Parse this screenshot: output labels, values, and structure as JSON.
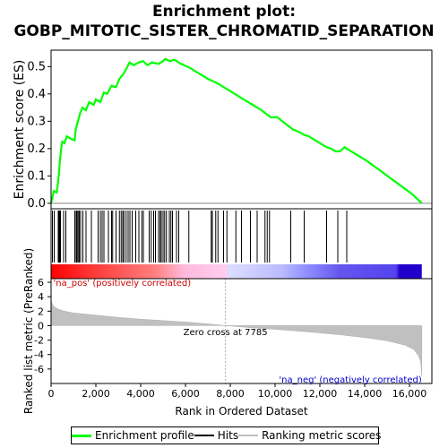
{
  "chart_data": {
    "type": "line",
    "title": "Enrichment plot:",
    "subtitle": "GOBP_MITOTIC_SISTER_CHROMATID_SEPARATION",
    "xlabel": "Rank in Ordered Dataset",
    "ylabel_top": "Enrichment score (ES)",
    "ylabel_bottom": "Ranked list metric (PreRanked)",
    "xlim": [
      0,
      17000
    ],
    "ylim_top": [
      -0.02,
      0.56
    ],
    "ylim_bottom": [
      -8,
      6.5
    ],
    "x_ticks": [
      0,
      2000,
      4000,
      6000,
      8000,
      10000,
      12000,
      14000,
      16000
    ],
    "x_tick_labels": [
      "0",
      "2,000",
      "4,000",
      "6,000",
      "8,000",
      "10,000",
      "12,000",
      "14,000",
      "16,000"
    ],
    "y_ticks_top": [
      0.0,
      0.1,
      0.2,
      0.3,
      0.4,
      0.5
    ],
    "y_tick_labels_top": [
      "0.0",
      "0.1",
      "0.2",
      "0.3",
      "0.4",
      "0.5"
    ],
    "y_ticks_bottom": [
      -6,
      -4,
      -2,
      0,
      2,
      4,
      6
    ],
    "y_tick_labels_bottom": [
      "-6",
      "-4",
      "-2",
      "0",
      "2",
      "4",
      "6"
    ],
    "series": [
      {
        "name": "Enrichment profile",
        "color": "#00ff00",
        "points": [
          [
            0,
            0.0
          ],
          [
            60,
            0.02
          ],
          [
            120,
            0.045
          ],
          [
            250,
            0.04
          ],
          [
            300,
            0.07
          ],
          [
            350,
            0.11
          ],
          [
            400,
            0.16
          ],
          [
            450,
            0.2
          ],
          [
            500,
            0.225
          ],
          [
            600,
            0.22
          ],
          [
            700,
            0.245
          ],
          [
            900,
            0.235
          ],
          [
            1050,
            0.23
          ],
          [
            1100,
            0.27
          ],
          [
            1200,
            0.3
          ],
          [
            1300,
            0.33
          ],
          [
            1400,
            0.35
          ],
          [
            1550,
            0.34
          ],
          [
            1700,
            0.37
          ],
          [
            1900,
            0.36
          ],
          [
            2000,
            0.38
          ],
          [
            2200,
            0.37
          ],
          [
            2350,
            0.405
          ],
          [
            2500,
            0.4
          ],
          [
            2700,
            0.43
          ],
          [
            2900,
            0.425
          ],
          [
            3050,
            0.455
          ],
          [
            3200,
            0.47
          ],
          [
            3350,
            0.49
          ],
          [
            3500,
            0.515
          ],
          [
            3700,
            0.505
          ],
          [
            3900,
            0.515
          ],
          [
            4100,
            0.52
          ],
          [
            4300,
            0.505
          ],
          [
            4500,
            0.515
          ],
          [
            4800,
            0.51
          ],
          [
            5000,
            0.52
          ],
          [
            5100,
            0.528
          ],
          [
            5300,
            0.52
          ],
          [
            5500,
            0.525
          ],
          [
            5800,
            0.51
          ],
          [
            6200,
            0.495
          ],
          [
            6600,
            0.475
          ],
          [
            7000,
            0.455
          ],
          [
            7400,
            0.44
          ],
          [
            7800,
            0.42
          ],
          [
            8200,
            0.4
          ],
          [
            8600,
            0.38
          ],
          [
            9000,
            0.36
          ],
          [
            9400,
            0.34
          ],
          [
            9800,
            0.315
          ],
          [
            10100,
            0.315
          ],
          [
            10400,
            0.295
          ],
          [
            10800,
            0.27
          ],
          [
            11100,
            0.26
          ],
          [
            11300,
            0.25
          ],
          [
            11500,
            0.245
          ],
          [
            11900,
            0.225
          ],
          [
            12300,
            0.205
          ],
          [
            12500,
            0.2
          ],
          [
            12700,
            0.19
          ],
          [
            12900,
            0.19
          ],
          [
            13100,
            0.205
          ],
          [
            13300,
            0.195
          ],
          [
            13700,
            0.175
          ],
          [
            14100,
            0.155
          ],
          [
            14600,
            0.125
          ],
          [
            15100,
            0.095
          ],
          [
            15600,
            0.065
          ],
          [
            16100,
            0.035
          ],
          [
            16550,
            0.0
          ]
        ]
      }
    ],
    "hits": [
      60,
      140,
      320,
      360,
      400,
      420,
      560,
      660,
      1060,
      1120,
      1160,
      1210,
      1260,
      1320,
      1420,
      1560,
      1800,
      2100,
      2200,
      2280,
      2360,
      2560,
      2700,
      2750,
      2900,
      3050,
      3130,
      3200,
      3250,
      3350,
      3440,
      3520,
      3620,
      3780,
      3920,
      4050,
      4120,
      4380,
      4470,
      4580,
      4660,
      4800,
      4870,
      4920,
      5000,
      5070,
      5150,
      5280,
      5350,
      5420,
      5600,
      5700,
      6150,
      7150,
      7200,
      7350,
      7450,
      7700,
      7850,
      8250,
      8500,
      8900,
      9200,
      9550,
      9650,
      9750,
      10700,
      11300,
      12300,
      12800,
      13200
    ],
    "ranked_metric": [
      [
        0,
        3.6
      ],
      [
        50,
        3.0
      ],
      [
        150,
        2.6
      ],
      [
        300,
        2.3
      ],
      [
        600,
        2.0
      ],
      [
        1000,
        1.75
      ],
      [
        2000,
        1.45
      ],
      [
        3000,
        1.15
      ],
      [
        4000,
        0.9
      ],
      [
        5000,
        0.7
      ],
      [
        6000,
        0.5
      ],
      [
        7000,
        0.25
      ],
      [
        7785,
        0.0
      ],
      [
        9000,
        -0.3
      ],
      [
        10000,
        -0.5
      ],
      [
        11000,
        -0.75
      ],
      [
        12000,
        -1.0
      ],
      [
        13000,
        -1.3
      ],
      [
        14000,
        -1.65
      ],
      [
        15000,
        -2.1
      ],
      [
        15800,
        -2.7
      ],
      [
        16200,
        -3.3
      ],
      [
        16400,
        -4.2
      ],
      [
        16500,
        -5.0
      ],
      [
        16550,
        -7.0
      ]
    ],
    "zero_cross_label": "Zero cross at 7785",
    "zero_cross_x": 7785,
    "pos_label": "'na_pos' (positively correlated)",
    "neg_label": "'na_neg' (negatively correlated)",
    "colorbar_stops": [
      [
        0,
        "#ff0000"
      ],
      [
        0.1,
        "#ff3333"
      ],
      [
        0.28,
        "#ff8080"
      ],
      [
        0.36,
        "#ffbbdd"
      ],
      [
        0.47,
        "#ffccee"
      ],
      [
        0.48,
        "#ddddff"
      ],
      [
        0.62,
        "#bbbbff"
      ],
      [
        0.7,
        "#8888ff"
      ],
      [
        0.78,
        "#6655ee"
      ],
      [
        0.93,
        "#5544ee"
      ],
      [
        0.94,
        "#2200cc"
      ],
      [
        1.0,
        "#2200cc"
      ]
    ],
    "grid": false,
    "legend": {
      "position": "bottom",
      "items": [
        {
          "label": "Enrichment profile",
          "color": "#00ff00"
        },
        {
          "label": "Hits",
          "color": "#000000"
        },
        {
          "label": "Ranking metric scores",
          "color": "#c0c0c0"
        }
      ]
    }
  }
}
